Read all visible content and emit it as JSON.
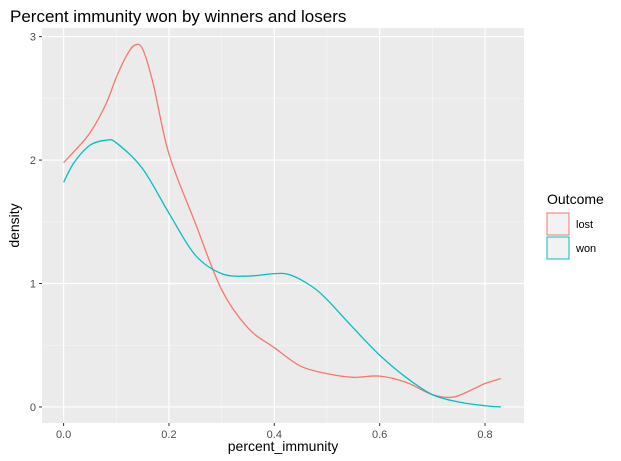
{
  "chart_data": {
    "type": "line",
    "title": "Percent immunity won by winners and losers",
    "xlabel": "percent_immunity",
    "ylabel": "density",
    "xlim": [
      -0.041,
      0.874
    ],
    "ylim": [
      -0.13,
      3.07
    ],
    "x_ticks": [
      0.0,
      0.2,
      0.4,
      0.6,
      0.8
    ],
    "x_tick_labels": [
      "0.0",
      "0.2",
      "0.4",
      "0.6",
      "0.8"
    ],
    "y_ticks": [
      0,
      1,
      2,
      3
    ],
    "y_tick_labels": [
      "0",
      "1",
      "2",
      "3"
    ],
    "grid": true,
    "legend": {
      "title": "Outcome",
      "position": "right"
    },
    "series": [
      {
        "name": "lost",
        "color": "#F8766D",
        "points": [
          [
            0.0,
            1.98
          ],
          [
            0.02,
            2.07
          ],
          [
            0.05,
            2.22
          ],
          [
            0.08,
            2.45
          ],
          [
            0.1,
            2.67
          ],
          [
            0.12,
            2.85
          ],
          [
            0.135,
            2.93
          ],
          [
            0.15,
            2.9
          ],
          [
            0.17,
            2.62
          ],
          [
            0.2,
            2.05
          ],
          [
            0.25,
            1.49
          ],
          [
            0.3,
            0.95
          ],
          [
            0.35,
            0.64
          ],
          [
            0.4,
            0.48
          ],
          [
            0.45,
            0.33
          ],
          [
            0.5,
            0.27
          ],
          [
            0.55,
            0.24
          ],
          [
            0.6,
            0.25
          ],
          [
            0.65,
            0.2
          ],
          [
            0.7,
            0.1
          ],
          [
            0.74,
            0.08
          ],
          [
            0.78,
            0.15
          ],
          [
            0.8,
            0.19
          ],
          [
            0.83,
            0.23
          ]
        ]
      },
      {
        "name": "won",
        "color": "#00BFC4",
        "points": [
          [
            0.0,
            1.82
          ],
          [
            0.02,
            1.98
          ],
          [
            0.05,
            2.12
          ],
          [
            0.08,
            2.16
          ],
          [
            0.1,
            2.14
          ],
          [
            0.15,
            1.93
          ],
          [
            0.2,
            1.57
          ],
          [
            0.25,
            1.23
          ],
          [
            0.3,
            1.08
          ],
          [
            0.35,
            1.06
          ],
          [
            0.4,
            1.08
          ],
          [
            0.43,
            1.07
          ],
          [
            0.47,
            0.98
          ],
          [
            0.5,
            0.87
          ],
          [
            0.55,
            0.64
          ],
          [
            0.6,
            0.42
          ],
          [
            0.65,
            0.24
          ],
          [
            0.7,
            0.1
          ],
          [
            0.75,
            0.04
          ],
          [
            0.8,
            0.01
          ],
          [
            0.83,
            0.0
          ]
        ]
      }
    ]
  }
}
